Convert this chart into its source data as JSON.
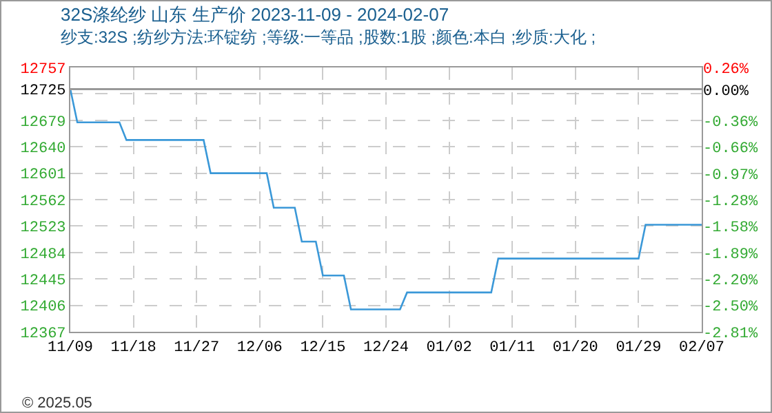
{
  "chart_data": {
    "type": "step",
    "title": "32S涤纶纱 山东 生产价 2023-11-09 - 2024-02-07",
    "subtitle": "纱支:32S ;纺纱方法:环锭纺 ;等级:一等品 ;股数:1股 ;颜色:本白 ;纱质:大化 ;",
    "x": [
      "2023-11-09",
      "2023-11-10",
      "2023-11-16",
      "2023-11-17",
      "2023-11-28",
      "2023-11-29",
      "2023-12-07",
      "2023-12-08",
      "2023-12-11",
      "2023-12-12",
      "2023-12-14",
      "2023-12-15",
      "2023-12-18",
      "2023-12-19",
      "2023-12-26",
      "2023-12-27",
      "2024-01-08",
      "2024-01-09",
      "2024-01-29",
      "2024-01-30",
      "2024-02-07"
    ],
    "series": [
      {
        "color": "#3a98d8",
        "values": [
          12725,
          12676,
          12676,
          12650,
          12650,
          12601,
          12601,
          12550,
          12550,
          12500,
          12500,
          12450,
          12450,
          12400,
          12400,
          12425,
          12425,
          12475,
          12475,
          12525,
          12525
        ]
      }
    ],
    "xlim": [
      "2023-11-09",
      "2024-02-07"
    ],
    "xticks": [
      {
        "value": "2023-11-09",
        "label": "11/09"
      },
      {
        "value": "2023-11-18",
        "label": "11/18"
      },
      {
        "value": "2023-11-27",
        "label": "11/27"
      },
      {
        "value": "2023-12-06",
        "label": "12/06"
      },
      {
        "value": "2023-12-15",
        "label": "12/15"
      },
      {
        "value": "2023-12-24",
        "label": "12/24"
      },
      {
        "value": "2024-01-02",
        "label": "01/02"
      },
      {
        "value": "2024-01-11",
        "label": "01/11"
      },
      {
        "value": "2024-01-20",
        "label": "01/20"
      },
      {
        "value": "2024-01-29",
        "label": "01/29"
      },
      {
        "value": "2024-02-07",
        "label": "02/07"
      }
    ],
    "ylim": [
      12367,
      12757
    ],
    "yticks": [
      12367,
      12406,
      12445,
      12484,
      12523,
      12562,
      12601,
      12640,
      12679,
      {
        "value": 12718,
        "label": null
      },
      12725,
      12757
    ],
    "y2lim": [
      -2.81,
      0.26
    ],
    "y2ticks": [
      {
        "value": -2.81,
        "label": "-2.81%"
      },
      {
        "value": -2.5,
        "label": "-2.50%"
      },
      {
        "value": -2.2,
        "label": "-2.20%"
      },
      {
        "value": -1.89,
        "label": "-1.89%"
      },
      {
        "value": -1.58,
        "label": "-1.58%"
      },
      {
        "value": -1.28,
        "label": "-1.28%"
      },
      {
        "value": -0.97,
        "label": "-0.97%"
      },
      {
        "value": -0.66,
        "label": "-0.66%"
      },
      {
        "value": -0.36,
        "label": "-0.36%"
      },
      {
        "value": 0,
        "label": "0.00%"
      },
      {
        "value": 0.26,
        "label": "0.26%"
      }
    ],
    "ref_lines": [
      {
        "axis": "y",
        "value": 12725,
        "color": "#999999",
        "line_style": "solid"
      }
    ],
    "grid": true,
    "marker": "none",
    "line_style": "solid",
    "annotations": [
      "© 2025.05"
    ]
  }
}
